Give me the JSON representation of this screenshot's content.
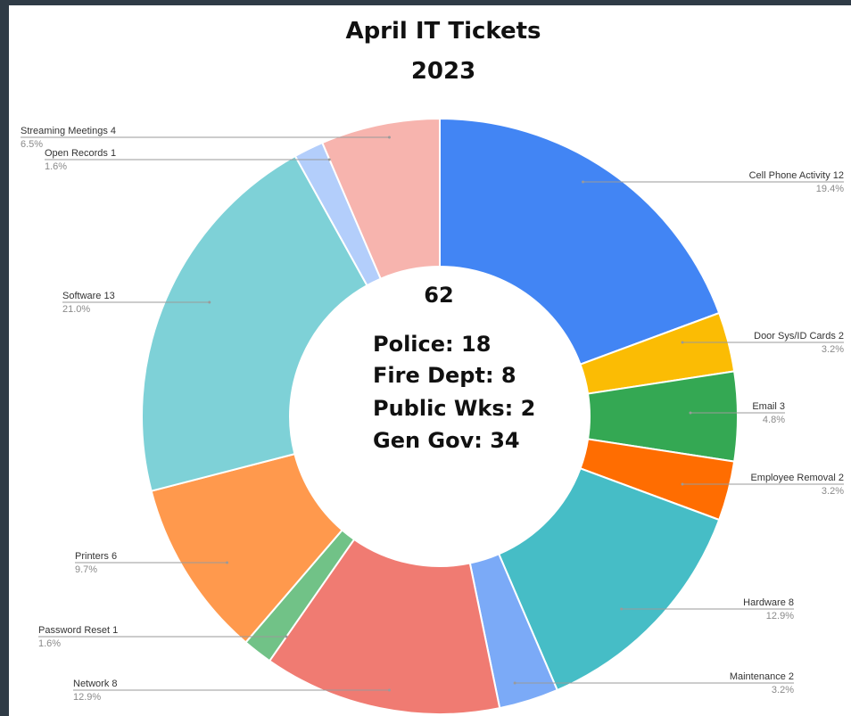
{
  "chart_data": {
    "type": "pie",
    "donut": true,
    "title": [
      "April IT Tickets",
      "2023"
    ],
    "center": {
      "total": "62",
      "lines": [
        "Police:  18",
        "Fire Dept:  8",
        "Public Wks:  2",
        "Gen Gov:  34"
      ]
    },
    "slices": [
      {
        "name": "Cell Phone Activity",
        "value": 12,
        "percent": "19.4%",
        "color": "#4285f4"
      },
      {
        "name": "Door Sys/ID Cards",
        "value": 2,
        "percent": "3.2%",
        "color": "#fbbc04"
      },
      {
        "name": "Email",
        "value": 3,
        "percent": "4.8%",
        "color": "#34a853"
      },
      {
        "name": "Employee Removal",
        "value": 2,
        "percent": "3.2%",
        "color": "#ff6d01"
      },
      {
        "name": "Hardware",
        "value": 8,
        "percent": "12.9%",
        "color": "#46bdc6"
      },
      {
        "name": "Maintenance",
        "value": 2,
        "percent": "3.2%",
        "color": "#7baaf7"
      },
      {
        "name": "Network",
        "value": 8,
        "percent": "12.9%",
        "color": "#f07b72"
      },
      {
        "name": "Password Reset",
        "value": 1,
        "percent": "1.6%",
        "color": "#71c287"
      },
      {
        "name": "Printers",
        "value": 6,
        "percent": "9.7%",
        "color": "#ff994d"
      },
      {
        "name": "Software",
        "value": 13,
        "percent": "21.0%",
        "color": "#7ed1d7"
      },
      {
        "name": "Open Records",
        "value": 1,
        "percent": "1.6%",
        "color": "#b3cefb"
      },
      {
        "name": "Streaming Meetings",
        "value": 4,
        "percent": "6.5%",
        "color": "#f7b4ae"
      }
    ]
  }
}
